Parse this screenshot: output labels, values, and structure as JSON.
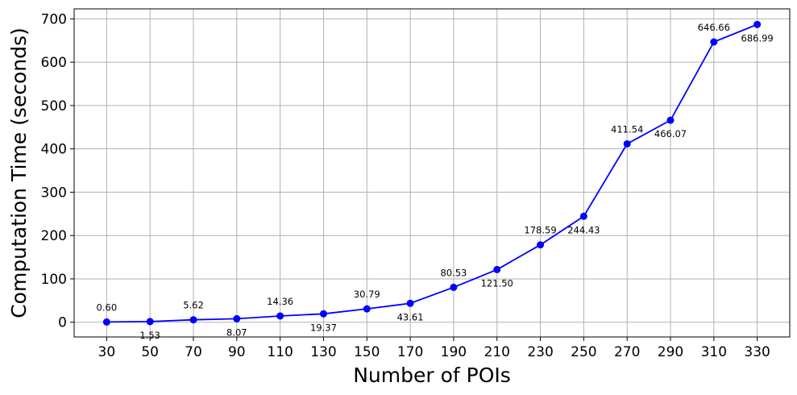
{
  "chart_data": {
    "type": "line",
    "title": "",
    "xlabel": "Number of POIs",
    "ylabel": "Computation Time (seconds)",
    "x": [
      30,
      50,
      70,
      90,
      110,
      130,
      150,
      170,
      190,
      210,
      230,
      250,
      270,
      290,
      310,
      330
    ],
    "series": [
      {
        "values": [
          0.6,
          1.53,
          5.62,
          8.07,
          14.36,
          19.37,
          30.79,
          43.61,
          80.53,
          121.5,
          178.59,
          244.43,
          411.54,
          466.07,
          646.66,
          686.99
        ],
        "data_labels": [
          "0.60",
          "1.53",
          "5.62",
          "8.07",
          "14.36",
          "19.37",
          "30.79",
          "43.61",
          "80.53",
          "121.50",
          "178.59",
          "244.43",
          "411.54",
          "466.07",
          "646.66",
          "686.99"
        ],
        "color": "#0000ff",
        "marker": "circle"
      }
    ],
    "xticks": [
      "30",
      "50",
      "70",
      "90",
      "110",
      "130",
      "150",
      "170",
      "190",
      "210",
      "230",
      "250",
      "270",
      "290",
      "310",
      "330"
    ],
    "yticks": [
      "0",
      "100",
      "200",
      "300",
      "400",
      "500",
      "600",
      "700"
    ],
    "xlim": [
      15,
      345
    ],
    "ylim": [
      -34,
      723
    ],
    "grid": true,
    "legend": false
  }
}
